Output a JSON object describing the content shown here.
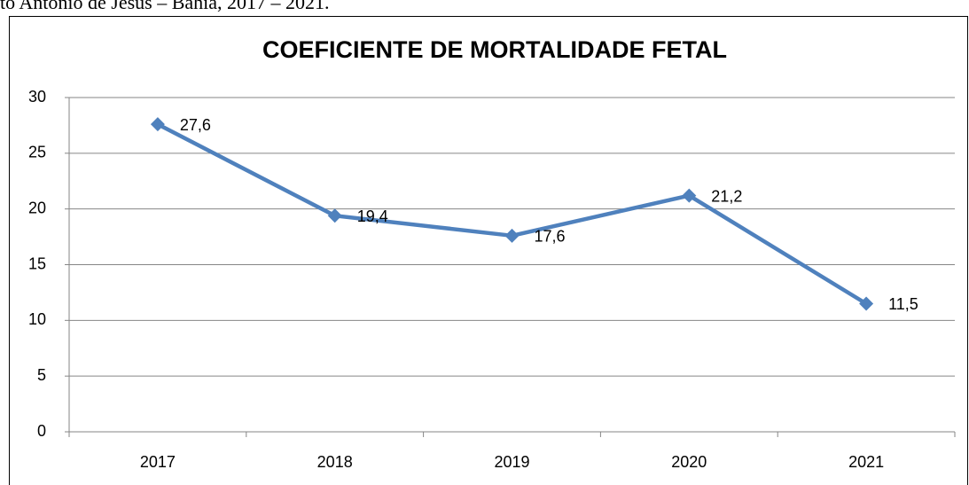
{
  "caption": "to Antônio de Jesus – Bahia, 2017 – 2021.",
  "chart_data": {
    "type": "line",
    "title": "COEFICIENTE DE MORTALIDADE FETAL",
    "categories": [
      "2017",
      "2018",
      "2019",
      "2020",
      "2021"
    ],
    "series": [
      {
        "color": "#4f81bd",
        "values": [
          27.6,
          19.4,
          17.6,
          21.2,
          11.5
        ],
        "value_labels": [
          "27,6",
          "19,4",
          "17,6",
          "21,2",
          "11,5"
        ]
      }
    ],
    "ylim": [
      0,
      30
    ],
    "yticks": [
      0,
      5,
      10,
      15,
      20,
      25,
      30
    ],
    "grid": true
  }
}
